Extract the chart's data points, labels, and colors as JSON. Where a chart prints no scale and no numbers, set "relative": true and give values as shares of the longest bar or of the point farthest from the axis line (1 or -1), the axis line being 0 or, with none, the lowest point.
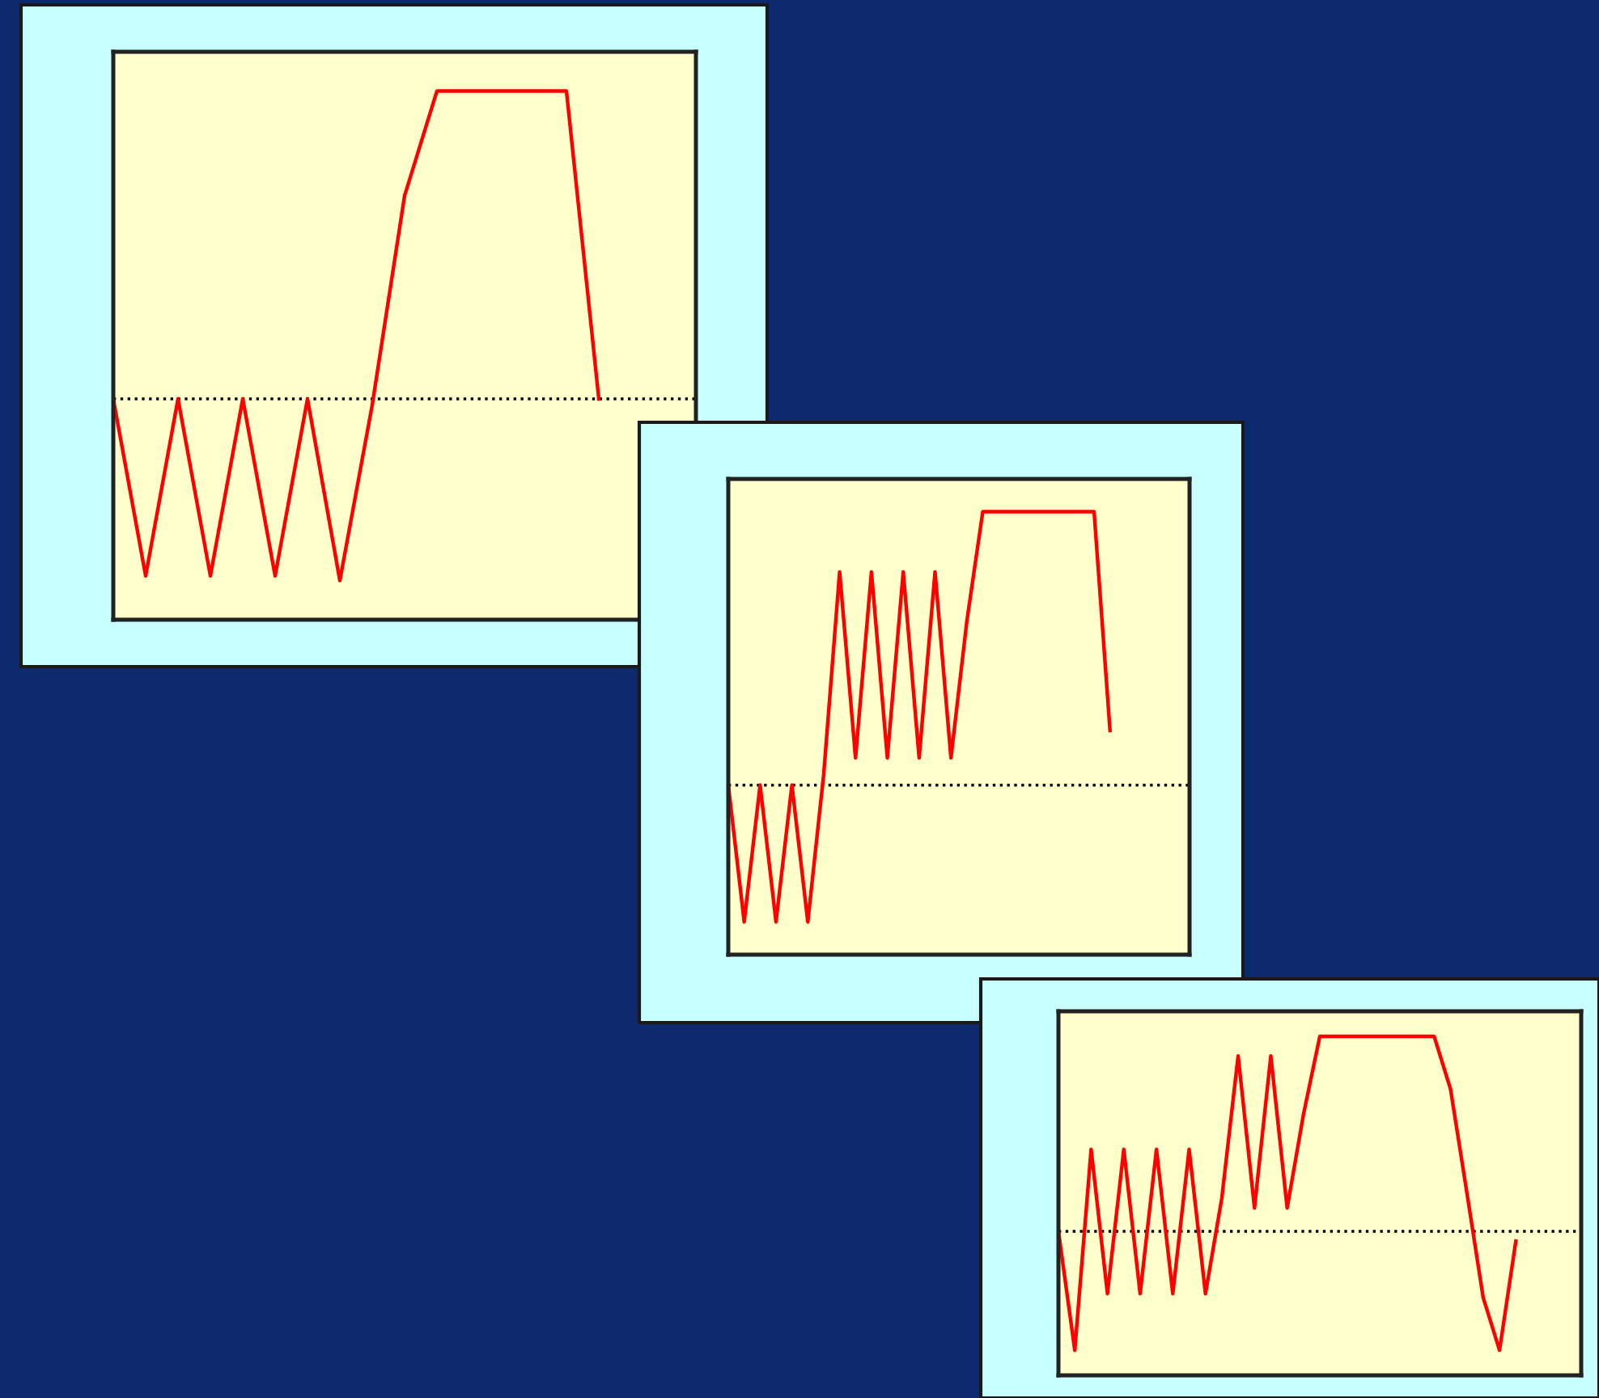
{
  "chart_data": [
    {
      "type": "line",
      "relative": true,
      "tick_labels": false,
      "categories": [
        null,
        null,
        null,
        null,
        null,
        null,
        null,
        null,
        null,
        null,
        null,
        null,
        null,
        null,
        null,
        null,
        null,
        null,
        null
      ],
      "series": [
        {
          "color": "#ff0000",
          "values": [
            0,
            -0.575,
            0,
            -0.575,
            0,
            -0.575,
            0,
            -0.59,
            -0.02,
            0.66,
            1,
            1,
            1,
            1,
            1,
            0,
            null,
            null,
            null
          ]
        }
      ],
      "ref_lines": [
        {
          "axis": "y",
          "value": 0,
          "line_style": "dotted",
          "color": "#000000"
        }
      ]
    },
    {
      "type": "line",
      "relative": true,
      "tick_labels": false,
      "categories": [
        null,
        null,
        null,
        null,
        null,
        null,
        null,
        null,
        null,
        null,
        null,
        null,
        null,
        null,
        null,
        null,
        null,
        null,
        null,
        null,
        null,
        null,
        null,
        null,
        null,
        null,
        null,
        null,
        null,
        null
      ],
      "series": [
        {
          "color": "#ff0000",
          "values": [
            0,
            -0.5,
            0,
            -0.5,
            0,
            -0.5,
            0.04,
            0.78,
            0.1,
            0.78,
            0.1,
            0.78,
            0.1,
            0.78,
            0.1,
            0.6,
            1,
            1,
            1,
            1,
            1,
            1,
            1,
            1,
            0.2,
            null,
            null,
            null,
            null,
            null
          ]
        }
      ],
      "ref_lines": [
        {
          "axis": "y",
          "value": 0,
          "line_style": "dotted",
          "color": "#000000"
        }
      ]
    },
    {
      "type": "line",
      "relative": true,
      "tick_labels": false,
      "categories": [
        null,
        null,
        null,
        null,
        null,
        null,
        null,
        null,
        null,
        null,
        null,
        null,
        null,
        null,
        null,
        null,
        null,
        null,
        null,
        null,
        null,
        null,
        null,
        null,
        null,
        null,
        null,
        null,
        null,
        null,
        null,
        null,
        null
      ],
      "series": [
        {
          "color": "#ff0000",
          "values": [
            0,
            -0.61,
            0.42,
            -0.32,
            0.42,
            -0.32,
            0.42,
            -0.32,
            0.42,
            -0.32,
            0.17,
            0.9,
            0.12,
            0.9,
            0.12,
            0.6,
            1,
            1,
            1,
            1,
            1,
            1,
            1,
            1,
            0.73,
            0.2,
            -0.34,
            -0.61,
            -0.05,
            null,
            null,
            null,
            null
          ]
        }
      ],
      "ref_lines": [
        {
          "axis": "y",
          "value": 0,
          "line_style": "dotted",
          "color": "#000000"
        }
      ]
    }
  ]
}
